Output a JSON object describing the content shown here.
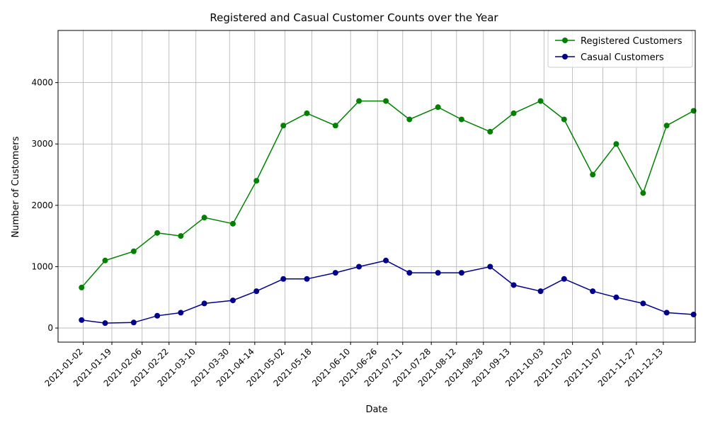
{
  "chart_data": {
    "type": "line",
    "title": "Registered and Casual Customer Counts over the Year",
    "xlabel": "Date",
    "ylabel": "Number of Customers",
    "ylim": [
      -230,
      4850
    ],
    "x_range": [
      "2020-12-18",
      "2022-01-01"
    ],
    "yticks": [
      0,
      1000,
      2000,
      3000,
      4000
    ],
    "xticks": [
      "2021-01-02",
      "2021-01-19",
      "2021-02-06",
      "2021-02-22",
      "2021-03-10",
      "2021-03-30",
      "2021-04-14",
      "2021-05-02",
      "2021-05-18",
      "2021-06-10",
      "2021-06-26",
      "2021-07-11",
      "2021-07-28",
      "2021-08-12",
      "2021-08-28",
      "2021-09-13",
      "2021-10-03",
      "2021-10-20",
      "2021-11-07",
      "2021-11-27",
      "2021-12-13"
    ],
    "grid": true,
    "legend_position": "top-right",
    "series": [
      {
        "name": "Registered Customers",
        "color": "#008000",
        "x": [
          "2021-01-01",
          "2021-01-15",
          "2021-02-01",
          "2021-02-15",
          "2021-03-01",
          "2021-03-15",
          "2021-04-01",
          "2021-04-15",
          "2021-05-01",
          "2021-05-15",
          "2021-06-01",
          "2021-06-15",
          "2021-07-01",
          "2021-07-15",
          "2021-08-01",
          "2021-08-15",
          "2021-09-01",
          "2021-09-15",
          "2021-10-01",
          "2021-10-15",
          "2021-11-01",
          "2021-11-15",
          "2021-12-01",
          "2021-12-15",
          "2021-12-31"
        ],
        "values": [
          660,
          1100,
          1250,
          1550,
          1500,
          1800,
          1700,
          2400,
          3300,
          3500,
          3300,
          3700,
          3700,
          3400,
          3600,
          3400,
          3200,
          3500,
          3700,
          3400,
          2500,
          3000,
          2200,
          3300,
          3540
        ]
      },
      {
        "name": "Casual Customers",
        "color": "#00008B",
        "x": [
          "2021-01-01",
          "2021-01-15",
          "2021-02-01",
          "2021-02-15",
          "2021-03-01",
          "2021-03-15",
          "2021-04-01",
          "2021-04-15",
          "2021-05-01",
          "2021-05-15",
          "2021-06-01",
          "2021-06-15",
          "2021-07-01",
          "2021-07-15",
          "2021-08-01",
          "2021-08-15",
          "2021-09-01",
          "2021-09-15",
          "2021-10-01",
          "2021-10-15",
          "2021-11-01",
          "2021-11-15",
          "2021-12-01",
          "2021-12-15",
          "2021-12-31"
        ],
        "values": [
          130,
          80,
          90,
          200,
          250,
          400,
          450,
          600,
          800,
          800,
          900,
          1000,
          1100,
          900,
          900,
          900,
          1000,
          700,
          600,
          800,
          600,
          500,
          400,
          250,
          220
        ]
      }
    ]
  }
}
